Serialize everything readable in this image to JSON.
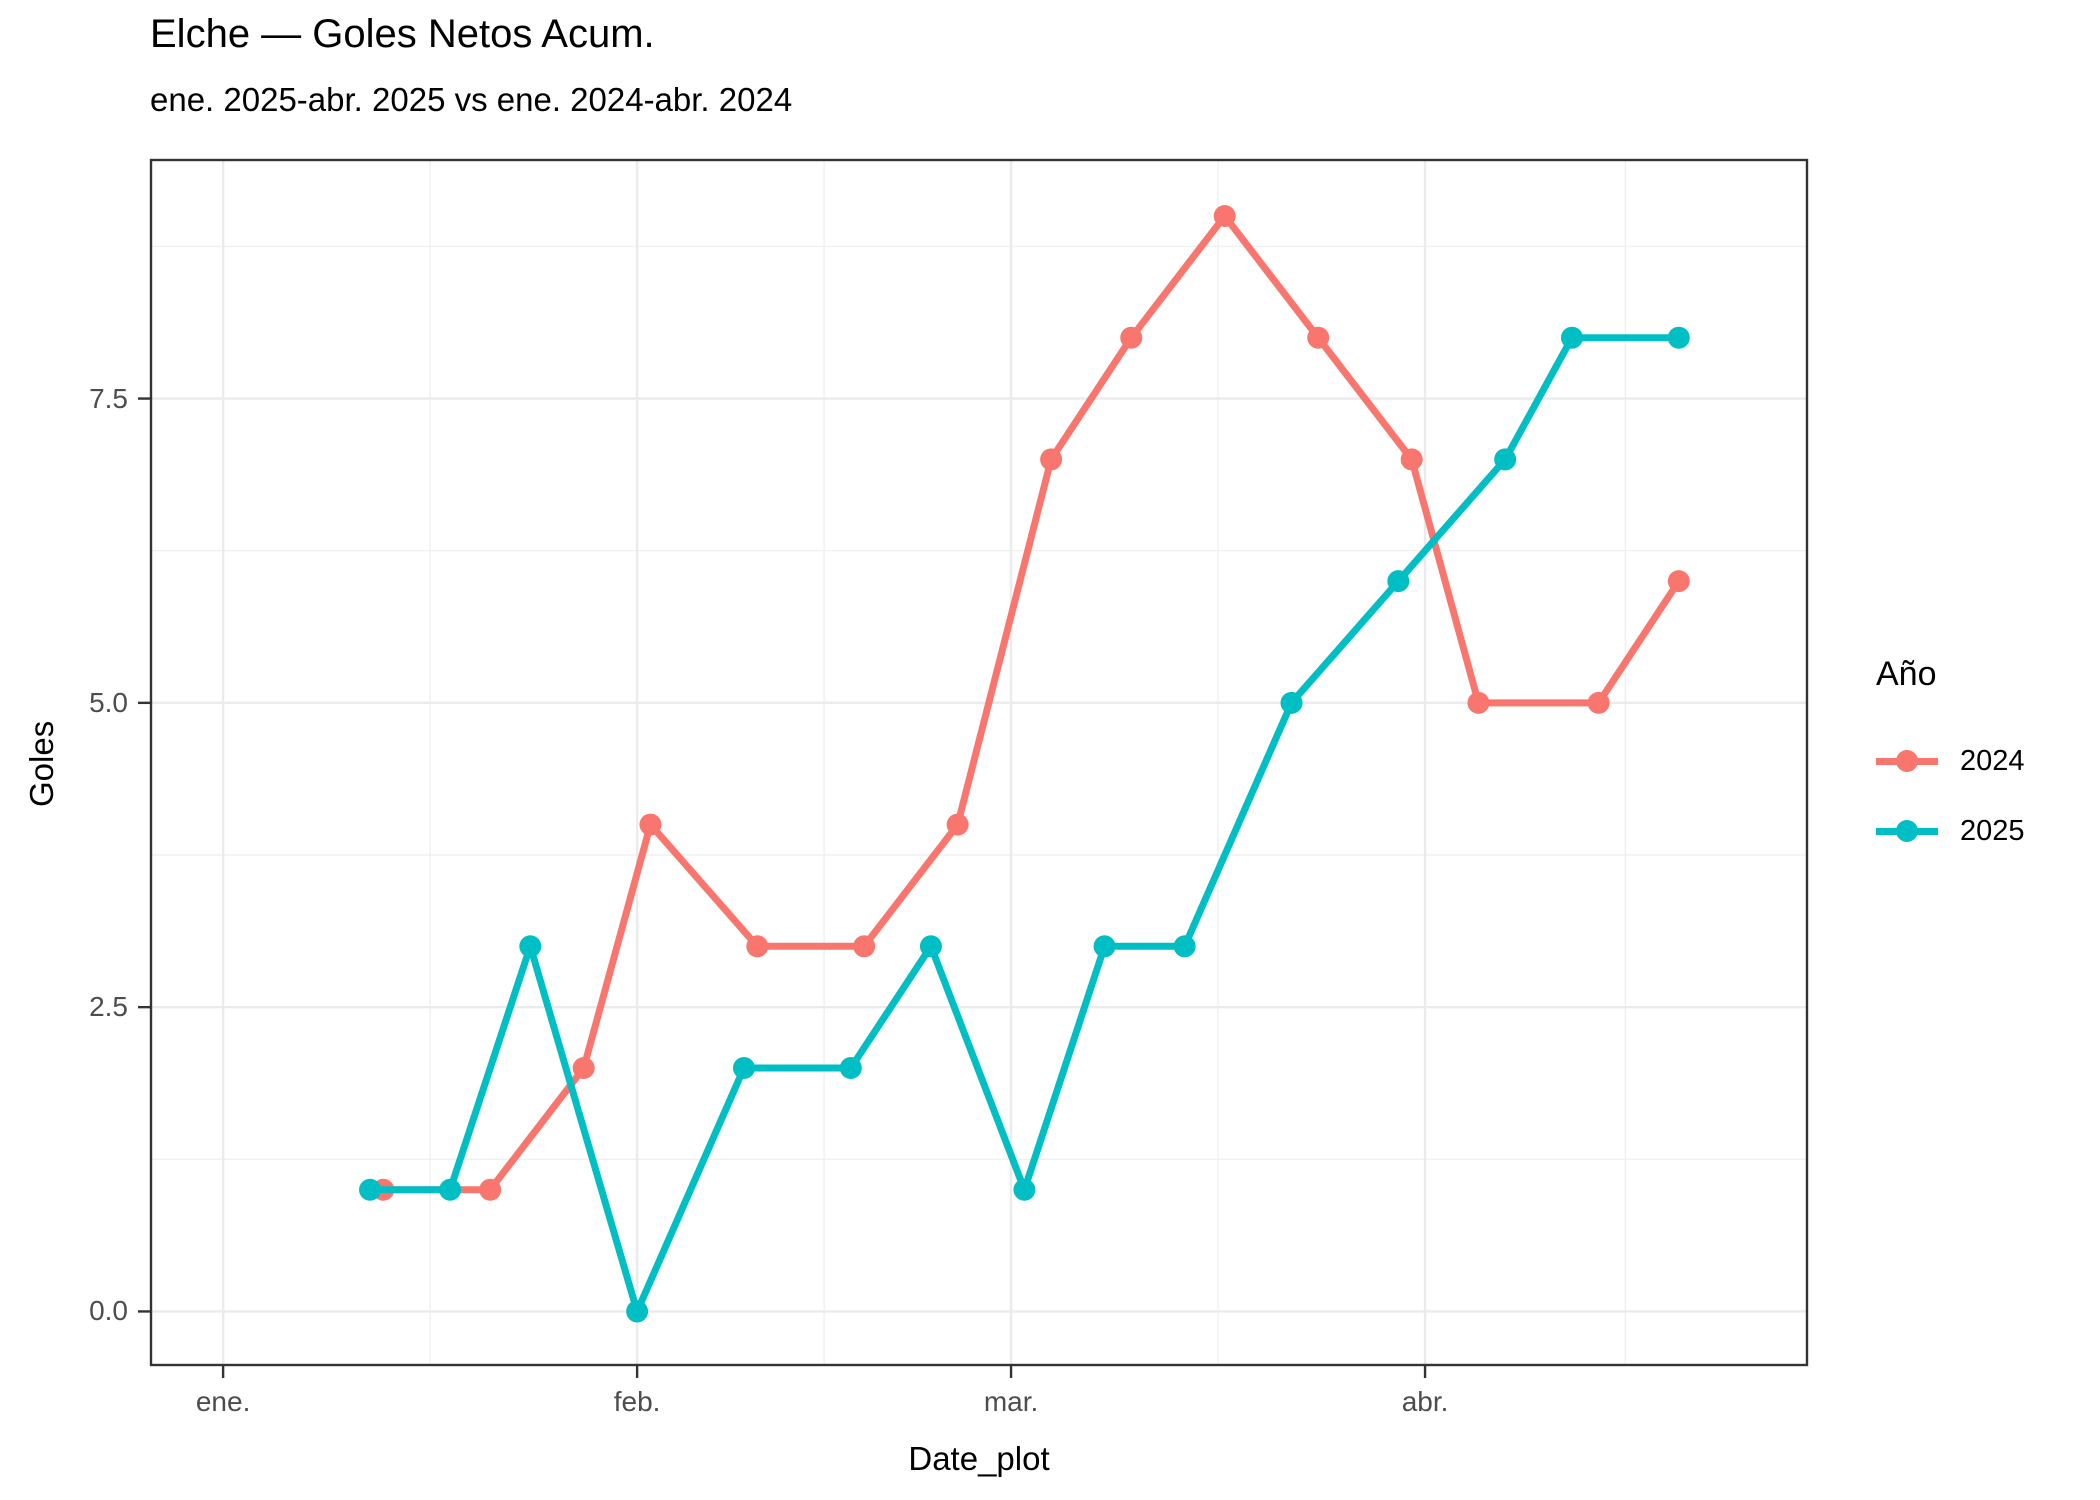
{
  "chart_data": {
    "type": "line",
    "title": "Elche — Goles Netos Acum.",
    "subtitle": "ene. 2025-abr. 2025 vs ene. 2024-abr. 2024",
    "xlabel": "Date_plot",
    "ylabel": "Goles",
    "x_axis": {
      "unit": "days since Jan 1",
      "domain": [
        -5.4,
        118.6
      ],
      "major_ticks": [
        {
          "day": 0,
          "label": "ene."
        },
        {
          "day": 31,
          "label": "feb."
        },
        {
          "day": 59,
          "label": "mar."
        },
        {
          "day": 90,
          "label": "abr."
        }
      ],
      "minor_days": [
        15.5,
        45,
        74.5,
        105
      ]
    },
    "y_axis": {
      "domain": [
        -0.44,
        9.46
      ],
      "major_ticks": [
        {
          "value": 0,
          "label": "0.0"
        },
        {
          "value": 2.5,
          "label": "2.5"
        },
        {
          "value": 5,
          "label": "5.0"
        },
        {
          "value": 7.5,
          "label": "7.5"
        }
      ],
      "minor_values": [
        1.25,
        3.75,
        6.25,
        8.75
      ]
    },
    "legend": {
      "title": "Año",
      "position": "right",
      "entries": [
        {
          "label": "2024",
          "color": "#F8766D"
        },
        {
          "label": "2025",
          "color": "#00BFC4"
        }
      ]
    },
    "series": [
      {
        "name": "2024",
        "color": "#F8766D",
        "points": [
          {
            "date": "ene. 13",
            "day": 12,
            "value": 1
          },
          {
            "date": "ene. 21",
            "day": 20,
            "value": 1
          },
          {
            "date": "ene. 28",
            "day": 27,
            "value": 2
          },
          {
            "date": "feb. 2",
            "day": 32,
            "value": 4
          },
          {
            "date": "feb. 10",
            "day": 40,
            "value": 3
          },
          {
            "date": "feb. 18",
            "day": 48,
            "value": 3
          },
          {
            "date": "feb. 25",
            "day": 55,
            "value": 4
          },
          {
            "date": "mar. 4",
            "day": 62,
            "value": 7
          },
          {
            "date": "mar. 10",
            "day": 68,
            "value": 8
          },
          {
            "date": "mar. 17",
            "day": 75,
            "value": 9
          },
          {
            "date": "mar. 24",
            "day": 82,
            "value": 8
          },
          {
            "date": "mar. 31",
            "day": 89,
            "value": 7
          },
          {
            "date": "abr. 5",
            "day": 94,
            "value": 5
          },
          {
            "date": "abr. 14",
            "day": 103,
            "value": 5
          },
          {
            "date": "abr. 20",
            "day": 109,
            "value": 6
          }
        ]
      },
      {
        "name": "2025",
        "color": "#00BFC4",
        "points": [
          {
            "date": "ene. 12",
            "day": 11,
            "value": 1
          },
          {
            "date": "ene. 18",
            "day": 17,
            "value": 1
          },
          {
            "date": "ene. 24",
            "day": 23,
            "value": 3
          },
          {
            "date": "feb. 1",
            "day": 31,
            "value": 0
          },
          {
            "date": "feb. 9",
            "day": 39,
            "value": 2
          },
          {
            "date": "feb. 17",
            "day": 47,
            "value": 2
          },
          {
            "date": "feb. 23",
            "day": 53,
            "value": 3
          },
          {
            "date": "mar. 2",
            "day": 60,
            "value": 1
          },
          {
            "date": "mar. 8",
            "day": 66,
            "value": 3
          },
          {
            "date": "mar. 14",
            "day": 72,
            "value": 3
          },
          {
            "date": "mar. 22",
            "day": 80,
            "value": 5
          },
          {
            "date": "mar. 30",
            "day": 88,
            "value": 6
          },
          {
            "date": "abr. 7",
            "day": 96,
            "value": 7
          },
          {
            "date": "abr. 12",
            "day": 101,
            "value": 8
          },
          {
            "date": "abr. 20",
            "day": 109,
            "value": 8
          }
        ]
      }
    ],
    "style": {
      "background": "#FFFFFF",
      "panel_border": "#333333",
      "grid_major": "#EBEBEB",
      "grid_minor": "#F0F0F0",
      "axis_text": "#4D4D4D",
      "text": "#000000",
      "line_width": 7,
      "point_radius": 11
    }
  }
}
